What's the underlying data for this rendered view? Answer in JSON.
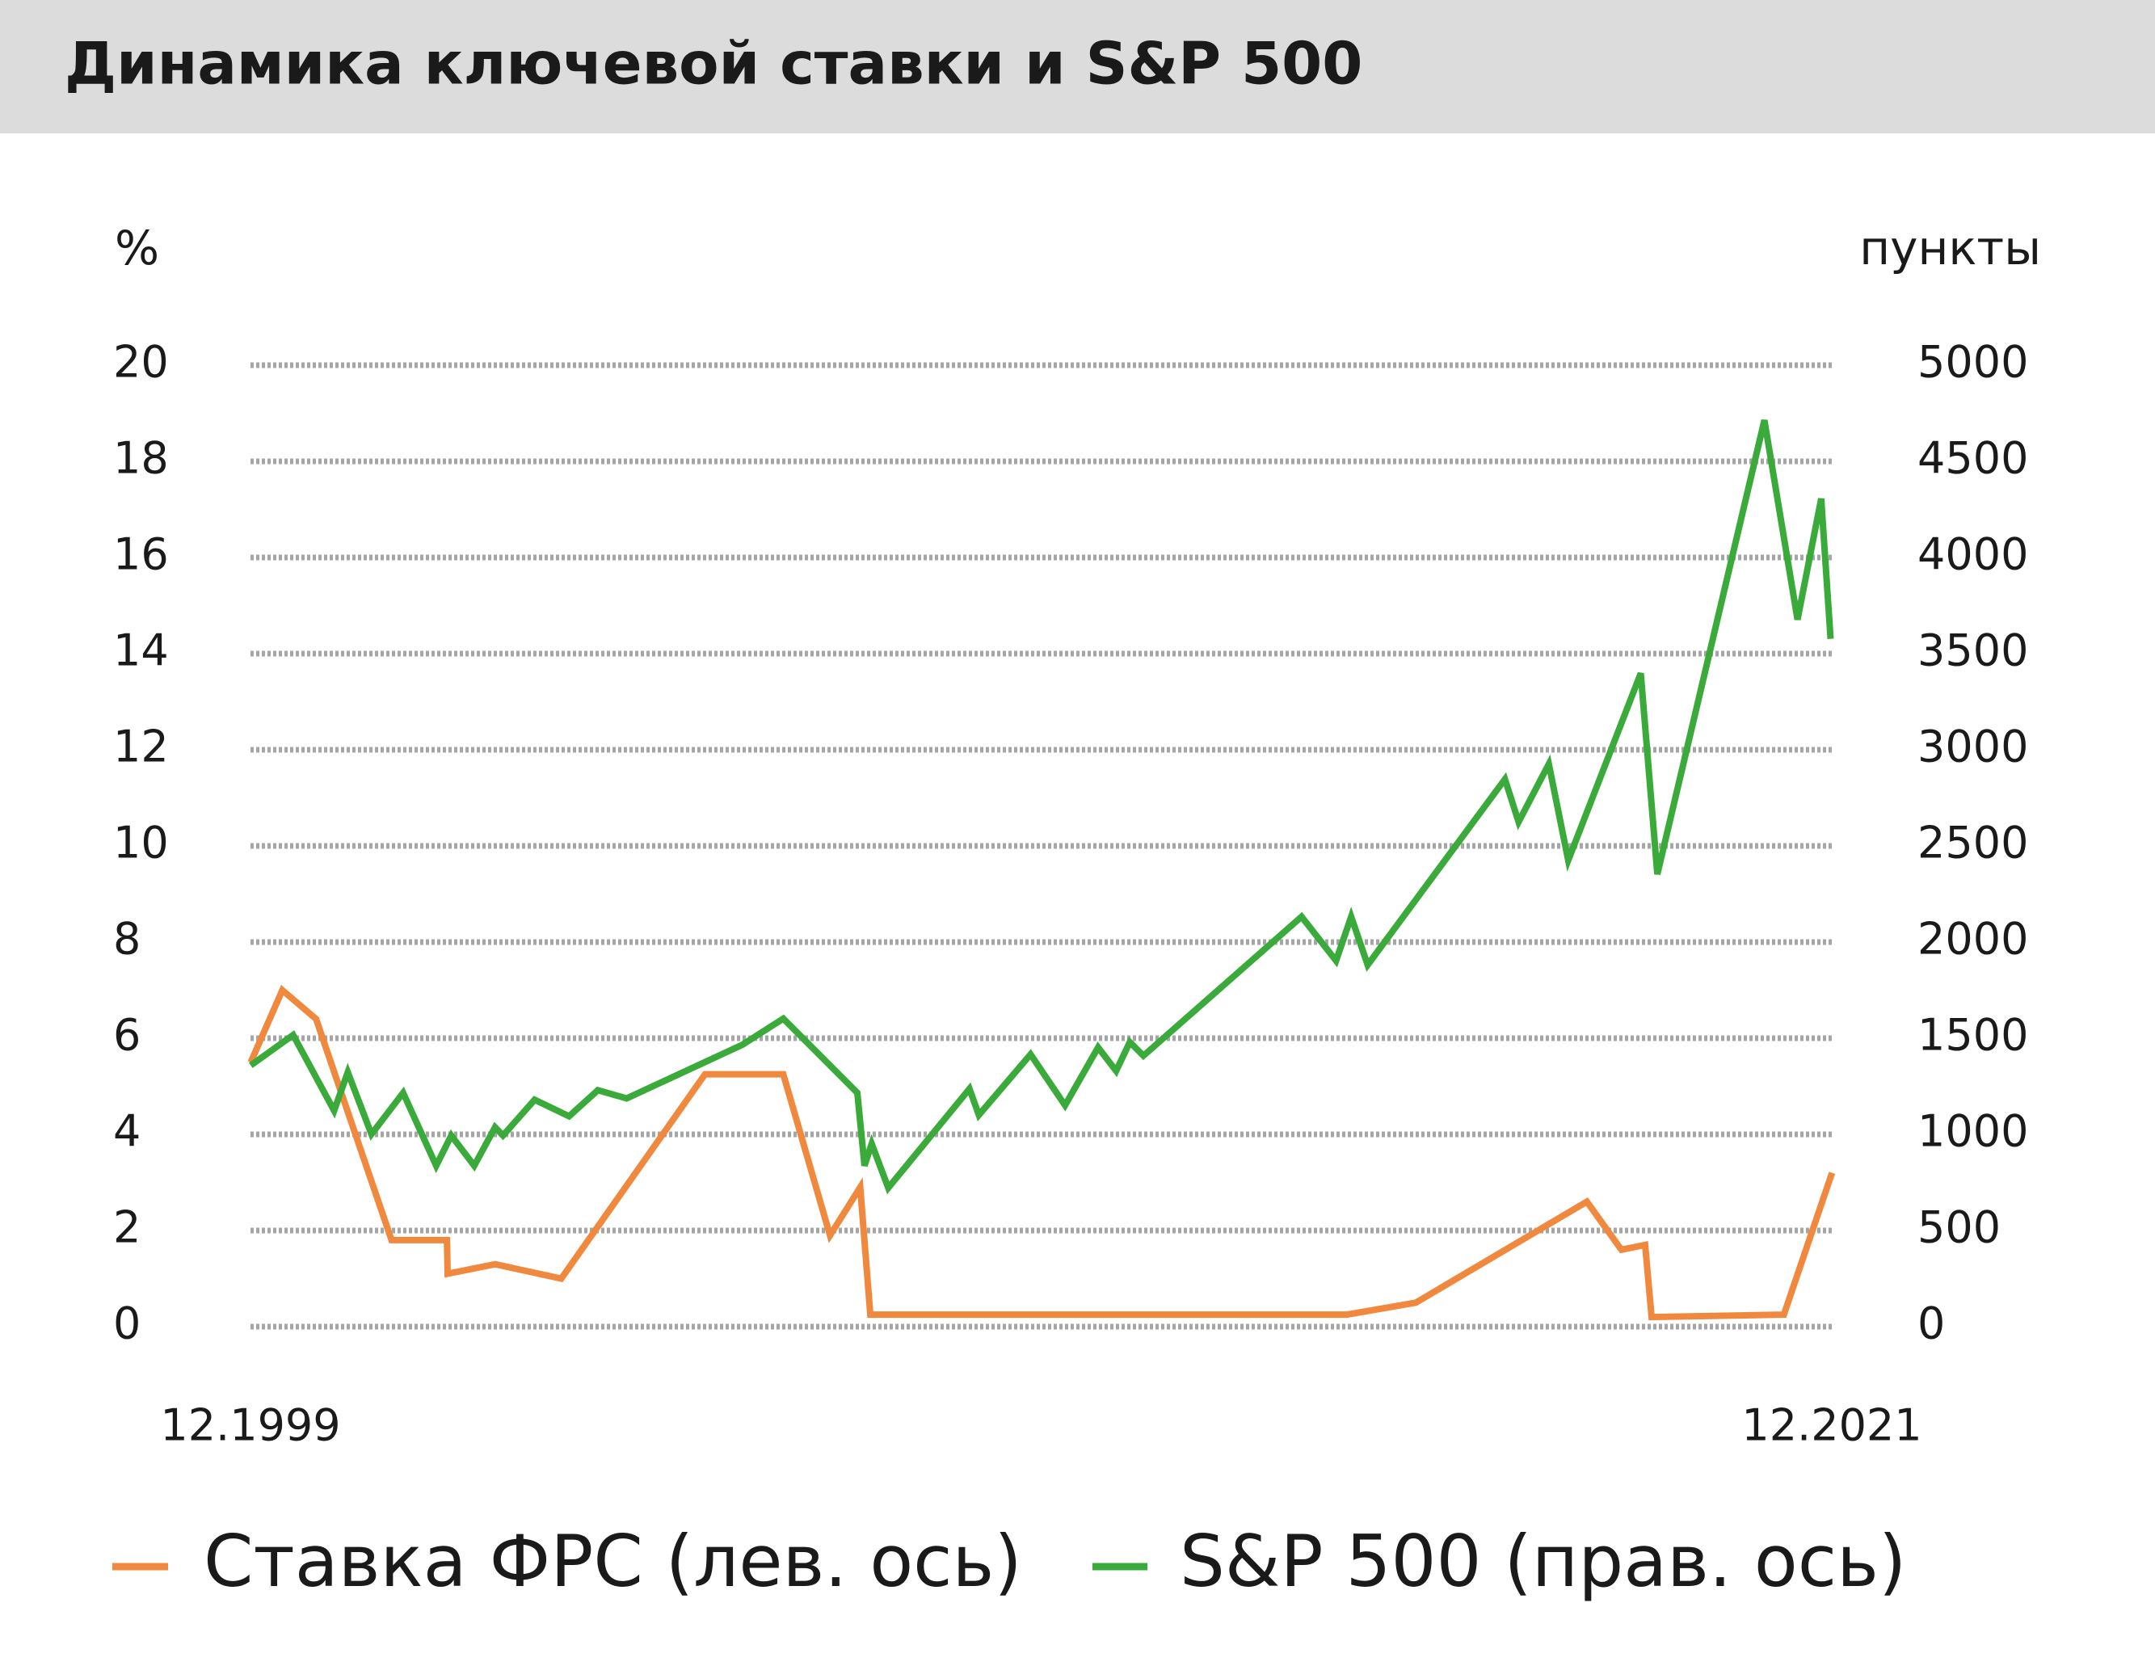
{
  "chart_data": {
    "type": "line",
    "title": "Динамика ключевой ставки и S&P 500",
    "y_label": "%",
    "y2_label": "пункты",
    "xlim": [
      1999.917,
      2021.917
    ],
    "xticks": [
      {
        "value": 1999.917,
        "label": "12.1999"
      },
      {
        "value": 2021.917,
        "label": "12.2021"
      }
    ],
    "ylim": [
      0,
      20
    ],
    "yticks": [
      0,
      2,
      4,
      6,
      8,
      10,
      12,
      14,
      16,
      18,
      20
    ],
    "y2lim": [
      0,
      5000
    ],
    "y2ticks": [
      0,
      500,
      1000,
      1500,
      2000,
      2500,
      3000,
      3500,
      4000,
      4500,
      5000
    ],
    "grid": true,
    "series": [
      {
        "name": "Ставка ФРС (лев. ось)",
        "color": "#f0883e",
        "axis": "y",
        "x": [
          1999.92,
          2000.36,
          2000.83,
          2001.88,
          2002.65,
          2002.66,
          2003.32,
          2004.24,
          2006.24,
          2007.33,
          2007.98,
          2008.4,
          2008.54,
          2015.17,
          2016.13,
          2018.51,
          2018.99,
          2019.32,
          2019.41,
          2021.25,
          2021.92
        ],
        "values": [
          5.5,
          7.0,
          6.4,
          1.8,
          1.8,
          1.1,
          1.3,
          1.0,
          5.25,
          5.25,
          1.9,
          2.9,
          0.25,
          0.25,
          0.5,
          2.6,
          1.6,
          1.7,
          0.2,
          0.25,
          3.2
        ]
      },
      {
        "name": "S&P 500 (прав. ось)",
        "color": "#3aaa3a",
        "axis": "y2",
        "x": [
          1999.92,
          2000.51,
          2001.08,
          2001.27,
          2001.6,
          2002.04,
          2002.5,
          2002.71,
          2003.03,
          2003.32,
          2003.43,
          2003.87,
          2004.35,
          2004.75,
          2005.15,
          2006.76,
          2007.33,
          2008.36,
          2008.46,
          2008.56,
          2008.79,
          2009.92,
          2010.05,
          2010.77,
          2011.25,
          2011.71,
          2011.96,
          2012.15,
          2012.34,
          2014.54,
          2015.02,
          2015.23,
          2015.46,
          2017.37,
          2017.56,
          2017.98,
          2018.25,
          2019.26,
          2019.49,
          2020.98,
          2021.44,
          2021.77,
          2021.9
        ],
        "values": [
          1359,
          1517,
          1123,
          1323,
          1001,
          1216,
          837,
          994,
          837,
          1037,
          994,
          1180,
          1094,
          1230,
          1187,
          1466,
          1602,
          1216,
          837,
          951,
          722,
          1237,
          1101,
          1416,
          1151,
          1452,
          1330,
          1480,
          1409,
          2132,
          1903,
          2132,
          1881,
          2847,
          2625,
          2926,
          2425,
          3398,
          2353,
          4714,
          3677,
          4306,
          3577
        ]
      }
    ]
  }
}
